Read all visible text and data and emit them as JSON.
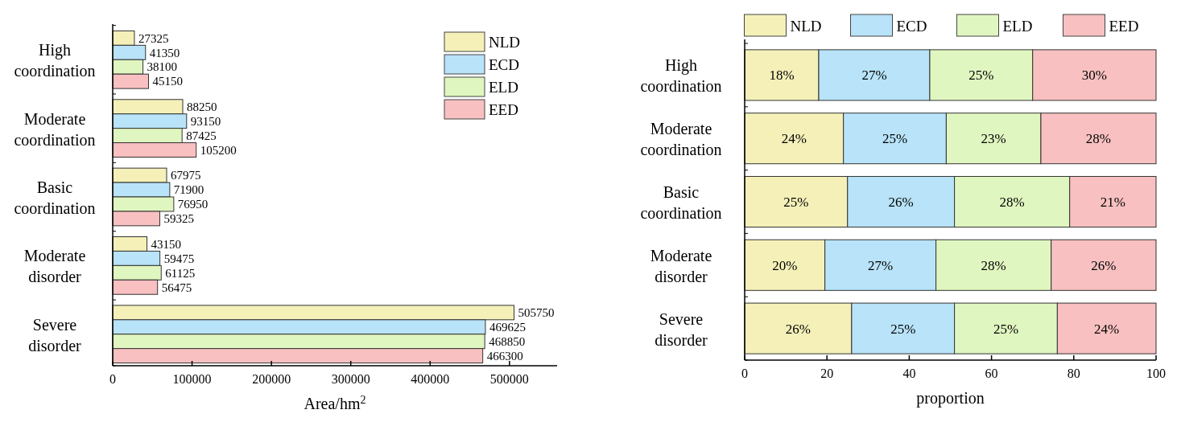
{
  "chart_data": [
    {
      "type": "bar",
      "orientation": "horizontal",
      "xlabel": "Area/hm$^{2}$",
      "categories": [
        "High coordination",
        "Moderate coordination",
        "Basic coordination",
        "Moderate disorder",
        "Severe disorder"
      ],
      "xlim": [
        0,
        560000
      ],
      "xticks": [
        0,
        100000,
        200000,
        300000,
        400000,
        500000
      ],
      "data_labels": true,
      "legend": "top right",
      "series": [
        {
          "name": "NLD",
          "color": "#f4f0b8",
          "values": [
            27325,
            88250,
            67975,
            43150,
            505750
          ]
        },
        {
          "name": "ECD",
          "color": "#b8e3f8",
          "values": [
            41350,
            93150,
            71900,
            59475,
            469625
          ]
        },
        {
          "name": "ELD",
          "color": "#e0f6c0",
          "values": [
            38100,
            87425,
            76950,
            61125,
            468850
          ]
        },
        {
          "name": "EED",
          "color": "#f8c0c0",
          "values": [
            45150,
            105200,
            59325,
            56475,
            466300
          ]
        }
      ]
    },
    {
      "type": "bar",
      "orientation": "horizontal",
      "stacked": true,
      "xlabel": "proportion",
      "categories": [
        "High coordination",
        "Moderate coordination",
        "Basic coordination",
        "Moderate disorder",
        "Severe disorder"
      ],
      "xlim": [
        0,
        100
      ],
      "xticks": [
        0,
        20,
        40,
        60,
        80,
        100
      ],
      "legend": "top",
      "series": [
        {
          "name": "NLD",
          "color": "#f4f0b8",
          "values": [
            18,
            24,
            25,
            19.5,
            26
          ],
          "value_labels": [
            "18%",
            "24%",
            "25%",
            "20%",
            "26%"
          ]
        },
        {
          "name": "ECD",
          "color": "#b8e3f8",
          "values": [
            27,
            25,
            26,
            27,
            25
          ],
          "value_labels": [
            "27%",
            "25%",
            "26%",
            "27%",
            "25%"
          ]
        },
        {
          "name": "ELD",
          "color": "#e0f6c0",
          "values": [
            25,
            23,
            28,
            28,
            25
          ],
          "value_labels": [
            "25%",
            "23%",
            "28%",
            "28%",
            "25%"
          ]
        },
        {
          "name": "EED",
          "color": "#f8c0c0",
          "values": [
            30,
            28,
            21,
            25.5,
            24
          ],
          "value_labels": [
            "30%",
            "28%",
            "21%",
            "26%",
            "24%"
          ]
        }
      ]
    }
  ]
}
